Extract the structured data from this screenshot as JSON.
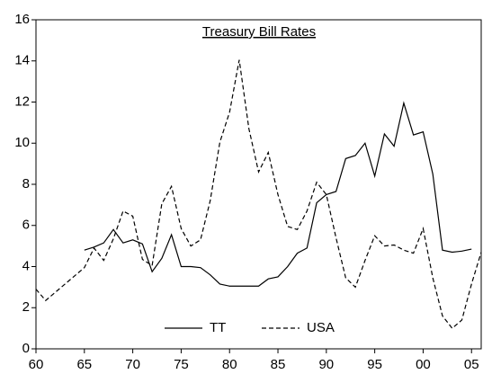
{
  "chart_data": {
    "type": "line",
    "title": "Treasury Bill Rates",
    "x": [
      1960,
      1961,
      1962,
      1963,
      1964,
      1965,
      1966,
      1967,
      1968,
      1969,
      1970,
      1971,
      1972,
      1973,
      1974,
      1975,
      1976,
      1977,
      1978,
      1979,
      1980,
      1981,
      1982,
      1983,
      1984,
      1985,
      1986,
      1987,
      1988,
      1989,
      1990,
      1991,
      1992,
      1993,
      1994,
      1995,
      1996,
      1997,
      1998,
      1999,
      2000,
      2001,
      2002,
      2003,
      2004,
      2005,
      2006
    ],
    "series": [
      {
        "name": "TT",
        "color": "#000000",
        "line_style": "solid",
        "values": [
          null,
          null,
          null,
          null,
          null,
          4.8,
          4.95,
          5.15,
          5.8,
          5.15,
          5.3,
          5.1,
          3.75,
          4.4,
          5.55,
          4.0,
          4.0,
          3.95,
          3.6,
          3.15,
          3.05,
          3.05,
          3.05,
          3.05,
          3.4,
          3.5,
          4.0,
          4.65,
          4.9,
          7.1,
          7.5,
          7.65,
          9.25,
          9.4,
          10.0,
          8.4,
          10.45,
          9.85,
          11.95,
          10.4,
          10.55,
          8.5,
          4.8,
          4.7,
          4.75,
          4.85,
          null
        ]
      },
      {
        "name": "USA",
        "color": "#000000",
        "line_style": "dashed",
        "values": [
          2.9,
          2.35,
          2.75,
          3.15,
          3.55,
          3.95,
          4.9,
          4.3,
          5.35,
          6.7,
          6.45,
          4.35,
          4.05,
          7.05,
          7.9,
          5.85,
          5.0,
          5.3,
          7.2,
          10.05,
          11.5,
          14.05,
          10.7,
          8.6,
          9.55,
          7.5,
          5.95,
          5.8,
          6.7,
          8.1,
          7.5,
          5.4,
          3.45,
          3.0,
          4.3,
          5.5,
          5.0,
          5.05,
          4.8,
          4.65,
          5.85,
          3.45,
          1.6,
          1.0,
          1.4,
          3.15,
          4.7
        ]
      }
    ],
    "xlim": [
      1960,
      2006
    ],
    "xticks": [
      {
        "value": 1960,
        "label": "60"
      },
      {
        "value": 1965,
        "label": "65"
      },
      {
        "value": 1970,
        "label": "70"
      },
      {
        "value": 1975,
        "label": "75"
      },
      {
        "value": 1980,
        "label": "80"
      },
      {
        "value": 1985,
        "label": "85"
      },
      {
        "value": 1990,
        "label": "90"
      },
      {
        "value": 1995,
        "label": "95"
      },
      {
        "value": 2000,
        "label": "00"
      },
      {
        "value": 2005,
        "label": "05"
      }
    ],
    "ylim": [
      0,
      16
    ],
    "yticks": [
      0,
      2,
      4,
      6,
      8,
      10,
      12,
      14,
      16
    ],
    "grid": false,
    "legend": "bottom"
  }
}
